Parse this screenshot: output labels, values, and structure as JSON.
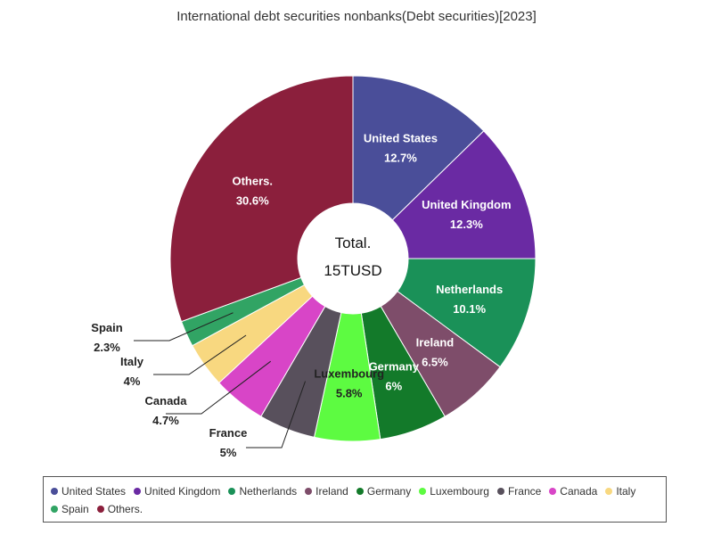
{
  "chart_data": {
    "type": "pie",
    "title": "International debt securities nonbanks(Debt securities)[2023]",
    "center_label": {
      "line1": "Total.",
      "line2": "15TUSD"
    },
    "legend_position": "bottom",
    "slices": [
      {
        "name": "United States",
        "value": 12.7,
        "label": "12.7%",
        "color": "#4a4e99",
        "label_style": "inside"
      },
      {
        "name": "United Kingdom",
        "value": 12.3,
        "label": "12.3%",
        "color": "#6a2aa3",
        "label_style": "inside"
      },
      {
        "name": "Netherlands",
        "value": 10.1,
        "label": "10.1%",
        "color": "#1a9158",
        "label_style": "inside"
      },
      {
        "name": "Ireland",
        "value": 6.5,
        "label": "6.5%",
        "color": "#7e4d6a",
        "label_style": "inside"
      },
      {
        "name": "Germany",
        "value": 6,
        "label": "6%",
        "color": "#137a2a",
        "label_style": "inside"
      },
      {
        "name": "Luxembourg",
        "value": 5.8,
        "label": "5.8%",
        "color": "#5dfb41",
        "label_style": "inside-dark"
      },
      {
        "name": "France",
        "value": 5,
        "label": "5%",
        "color": "#58505c",
        "label_style": "outside"
      },
      {
        "name": "Canada",
        "value": 4.7,
        "label": "4.7%",
        "color": "#d845c7",
        "label_style": "outside"
      },
      {
        "name": "Italy",
        "value": 4,
        "label": "4%",
        "color": "#f8d880",
        "label_style": "outside"
      },
      {
        "name": "Spain",
        "value": 2.3,
        "label": "2.3%",
        "color": "#31a464",
        "label_style": "outside"
      },
      {
        "name": "Others.",
        "value": 30.6,
        "label": "30.6%",
        "color": "#8b1f3c",
        "label_style": "inside"
      }
    ]
  }
}
